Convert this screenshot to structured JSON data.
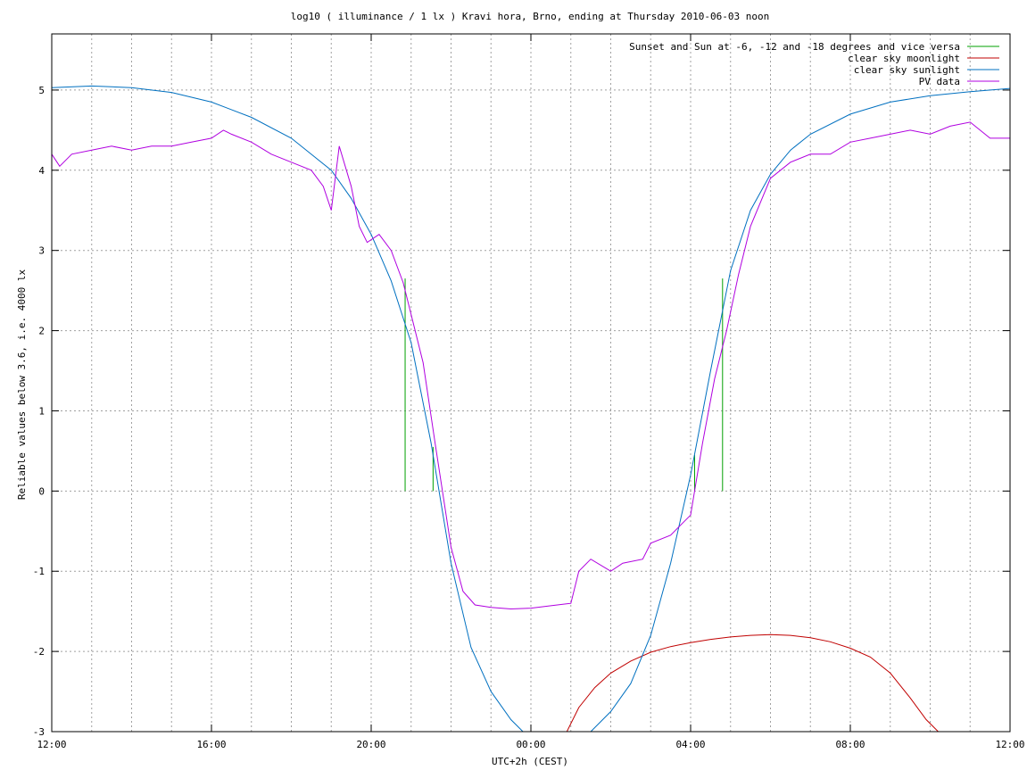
{
  "chart_data": {
    "type": "line",
    "title": "log10 ( illuminance / 1 lx ) Kravi hora, Brno, ending at Thursday 2010-06-03 noon",
    "xlabel": "UTC+2h (CEST)",
    "ylabel": "Reliable values below 3.6, i.e. 4000 lx",
    "xlim": [
      12,
      36
    ],
    "ylim": [
      -3,
      5.7
    ],
    "x_ticks": [
      {
        "value": 12,
        "label": "12:00"
      },
      {
        "value": 16,
        "label": "16:00"
      },
      {
        "value": 20,
        "label": "20:00"
      },
      {
        "value": 24,
        "label": "00:00"
      },
      {
        "value": 28,
        "label": "04:00"
      },
      {
        "value": 32,
        "label": "08:00"
      },
      {
        "value": 36,
        "label": "12:00"
      }
    ],
    "y_ticks": [
      {
        "value": -3,
        "label": "-3"
      },
      {
        "value": -2,
        "label": "-2"
      },
      {
        "value": -1,
        "label": "-1"
      },
      {
        "value": 0,
        "label": "0"
      },
      {
        "value": 1,
        "label": "1"
      },
      {
        "value": 2,
        "label": "2"
      },
      {
        "value": 3,
        "label": "3"
      },
      {
        "value": 4,
        "label": "4"
      },
      {
        "value": 5,
        "label": "5"
      }
    ],
    "grid": true,
    "legend_position": "top-right",
    "series": [
      {
        "name": "Sunset and Sun at -6, -12 and -18 degrees and vice versa",
        "color": "#00a000",
        "style": "vertical-lines",
        "lines": [
          {
            "x": 20.85,
            "y_top": 2.65
          },
          {
            "x": 21.55,
            "y_top": 0.55
          },
          {
            "x": 22.5,
            "y_top": 0.0
          },
          {
            "x": 24.2,
            "y_top": 0.0
          },
          {
            "x": 25.5,
            "y_top": 0.0
          },
          {
            "x": 27.2,
            "y_top": 0.0
          },
          {
            "x": 28.1,
            "y_top": 0.45
          },
          {
            "x": 28.8,
            "y_top": 2.65
          }
        ]
      },
      {
        "name": "clear sky moonlight",
        "color": "#c00000",
        "x": [
          24.9,
          25.2,
          25.6,
          26.0,
          26.5,
          27.0,
          27.5,
          28.0,
          28.5,
          29.0,
          29.5,
          30.0,
          30.5,
          31.0,
          31.5,
          32.0,
          32.5,
          33.0,
          33.5,
          33.9,
          34.2
        ],
        "y": [
          -3.0,
          -2.7,
          -2.45,
          -2.27,
          -2.12,
          -2.01,
          -1.94,
          -1.89,
          -1.85,
          -1.82,
          -1.8,
          -1.79,
          -1.8,
          -1.83,
          -1.88,
          -1.96,
          -2.07,
          -2.27,
          -2.58,
          -2.85,
          -3.0
        ]
      },
      {
        "name": "clear sky sunlight",
        "color": "#0070c0",
        "x": [
          12.0,
          13.0,
          14.0,
          15.0,
          16.0,
          17.0,
          18.0,
          19.0,
          19.5,
          20.0,
          20.5,
          21.0,
          21.5,
          22.0,
          22.5,
          23.0,
          23.5,
          23.8,
          25.5,
          26.0,
          26.5,
          27.0,
          27.5,
          28.0,
          28.5,
          29.0,
          29.5,
          30.0,
          30.5,
          31.0,
          32.0,
          33.0,
          34.0,
          35.0,
          36.0
        ],
        "y": [
          5.03,
          5.05,
          5.03,
          4.97,
          4.85,
          4.66,
          4.4,
          4.0,
          3.65,
          3.2,
          2.62,
          1.85,
          0.6,
          -0.9,
          -1.95,
          -2.5,
          -2.85,
          -3.0,
          -3.0,
          -2.75,
          -2.4,
          -1.8,
          -0.9,
          0.2,
          1.5,
          2.75,
          3.5,
          3.95,
          4.25,
          4.45,
          4.7,
          4.85,
          4.93,
          4.98,
          5.02
        ]
      },
      {
        "name": "PV data",
        "color": "#b000e0",
        "x": [
          12.0,
          12.2,
          12.5,
          13.0,
          13.5,
          14.0,
          14.5,
          15.0,
          15.5,
          16.0,
          16.3,
          16.5,
          17.0,
          17.5,
          18.0,
          18.5,
          18.8,
          19.0,
          19.2,
          19.5,
          19.7,
          19.9,
          20.2,
          20.5,
          20.8,
          21.0,
          21.3,
          21.6,
          22.0,
          22.3,
          22.6,
          23.0,
          23.5,
          24.0,
          24.5,
          25.0,
          25.2,
          25.5,
          26.0,
          26.3,
          26.8,
          27.0,
          27.5,
          28.0,
          28.3,
          28.6,
          28.9,
          29.2,
          29.5,
          30.0,
          30.5,
          31.0,
          31.5,
          32.0,
          32.5,
          33.0,
          33.5,
          34.0,
          34.5,
          35.0,
          35.5,
          36.0
        ],
        "y": [
          4.2,
          4.05,
          4.2,
          4.25,
          4.3,
          4.25,
          4.3,
          4.3,
          4.35,
          4.4,
          4.5,
          4.45,
          4.35,
          4.2,
          4.1,
          4.0,
          3.8,
          3.5,
          4.3,
          3.8,
          3.3,
          3.1,
          3.2,
          3.0,
          2.6,
          2.2,
          1.6,
          0.6,
          -0.7,
          -1.25,
          -1.42,
          -1.45,
          -1.47,
          -1.46,
          -1.43,
          -1.4,
          -1.0,
          -0.85,
          -1.0,
          -0.9,
          -0.85,
          -0.65,
          -0.55,
          -0.3,
          0.6,
          1.4,
          2.0,
          2.7,
          3.3,
          3.9,
          4.1,
          4.2,
          4.2,
          4.35,
          4.4,
          4.45,
          4.5,
          4.45,
          4.55,
          4.6,
          4.4,
          4.4
        ]
      }
    ]
  }
}
